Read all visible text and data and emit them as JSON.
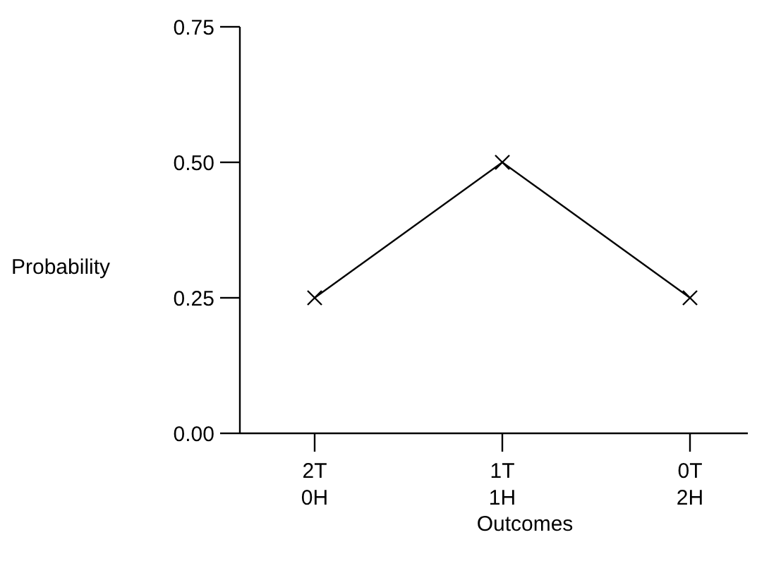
{
  "chart_data": {
    "type": "line",
    "xlabel": "Outcomes",
    "ylabel": "Probability",
    "categories": [
      "2T\n0H",
      "1T\n1H",
      "0T\n2H"
    ],
    "series": [
      {
        "color": "#000000",
        "values": [
          0.25,
          0.5,
          0.25
        ]
      }
    ],
    "ylim": [
      0,
      0.75
    ],
    "yticks": [
      {
        "value": 0,
        "label": "0.00"
      },
      {
        "value": 0.25,
        "label": "0.25"
      },
      {
        "value": 0.5,
        "label": "0.50"
      },
      {
        "value": 0.75,
        "label": "0.75"
      }
    ],
    "marker": "cross",
    "line_style": "solid",
    "grid": false
  }
}
